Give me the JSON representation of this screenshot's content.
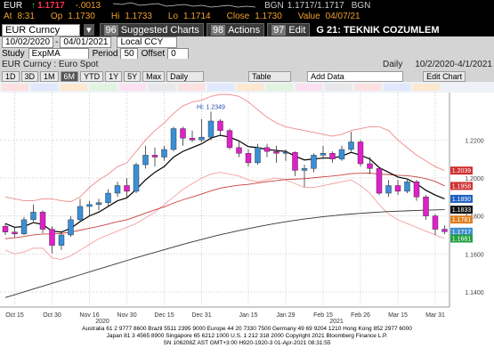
{
  "header": {
    "ticker": "EUR",
    "arrow": "↑",
    "last": "1.1717",
    "change": "-.0013",
    "bid_source": "BGN",
    "bid_ask": "1.1717/1.1717",
    "ask_source": "BGN",
    "at_label": "At",
    "time": "8:31",
    "open_label": "Op",
    "open": "1.1730",
    "high_label": "Hi",
    "high": "1.1733",
    "low_label": "Lo",
    "low": "1.1714",
    "close_label": "Close",
    "close": "1.1730",
    "value_label": "Value",
    "value_date": "04/07/21"
  },
  "toolbar": {
    "security": "EUR Curncy",
    "buttons": [
      {
        "code": "96",
        "label": "Suggested Charts"
      },
      {
        "code": "98",
        "label": "Actions"
      },
      {
        "code": "97",
        "label": "Edit"
      }
    ],
    "page": "G 21: TEKNIK COZUMLEM"
  },
  "range": {
    "start": "10/02/2020",
    "separator": "-",
    "end": "04/01/2021",
    "currency": "Local CCY"
  },
  "study": {
    "label": "Study",
    "name": "ExpMA",
    "period_label": "Period",
    "period": 50,
    "offset_label": "Offset",
    "offset": 0
  },
  "subtitle": {
    "security": "EUR Curncy : Euro Spot",
    "frequency": "Daily",
    "dates": "10/2/2020-4/1/2021"
  },
  "range_buttons": [
    {
      "label": "1D"
    },
    {
      "label": "3D"
    },
    {
      "label": "1M"
    },
    {
      "label": "6M",
      "selected": true
    },
    {
      "label": "YTD"
    },
    {
      "label": "1Y"
    },
    {
      "label": "5Y"
    },
    {
      "label": "Max"
    }
  ],
  "frequency_menu": "Daily",
  "actions": {
    "table": "Table",
    "add_data": "Add Data",
    "edit_chart": "Edit Chart"
  },
  "chart_data": {
    "type": "candlestick",
    "categories": [
      null,
      "Oct 15",
      null,
      null,
      null,
      "Oct 30",
      null,
      null,
      null,
      "Nov 16",
      null,
      null,
      null,
      "Nov 30",
      null,
      null,
      null,
      "Dec 15",
      null,
      null,
      null,
      "Dec 31",
      null,
      null,
      null,
      null,
      "Jan 15",
      null,
      null,
      null,
      "Jan 29",
      null,
      null,
      null,
      "Feb 15",
      null,
      null,
      null,
      "Feb 26",
      null,
      null,
      null,
      "Mar 15",
      null,
      null,
      null,
      "Mar 31",
      null
    ],
    "years": [
      "2020",
      "2021"
    ],
    "open": [
      1.1745,
      1.1715,
      1.1705,
      1.178,
      1.182,
      1.173,
      1.1645,
      1.17,
      1.178,
      1.185,
      1.186,
      1.187,
      1.192,
      1.196,
      1.193,
      1.207,
      1.212,
      1.211,
      1.215,
      1.226,
      1.221,
      1.22,
      1.2215,
      1.23,
      1.225,
      1.216,
      1.213,
      1.208,
      1.216,
      1.214,
      1.213,
      1.2135,
      1.204,
      1.205,
      1.212,
      1.213,
      1.21,
      1.215,
      1.219,
      1.2075,
      1.205,
      1.192,
      1.196,
      1.193,
      1.198,
      1.19,
      1.18,
      1.173
    ],
    "high": [
      1.176,
      1.174,
      1.1795,
      1.186,
      1.183,
      1.1745,
      1.172,
      1.18,
      1.189,
      1.188,
      1.189,
      1.194,
      1.198,
      1.2,
      1.208,
      1.217,
      1.216,
      1.217,
      1.227,
      1.227,
      1.225,
      1.231,
      1.2349,
      1.231,
      1.226,
      1.219,
      1.215,
      1.218,
      1.218,
      1.217,
      1.215,
      1.214,
      1.207,
      1.213,
      1.217,
      1.214,
      1.217,
      1.2243,
      1.22,
      1.211,
      1.206,
      1.199,
      1.199,
      1.199,
      1.199,
      1.191,
      1.181,
      1.175
    ],
    "low": [
      1.17,
      1.1688,
      1.17,
      1.177,
      1.171,
      1.1603,
      1.162,
      1.169,
      1.177,
      1.18,
      1.183,
      1.185,
      1.19,
      1.19,
      1.192,
      1.205,
      1.206,
      1.209,
      1.214,
      1.217,
      1.219,
      1.219,
      1.22,
      1.222,
      1.215,
      1.211,
      1.206,
      1.207,
      1.211,
      1.208,
      1.209,
      1.201,
      1.1953,
      1.203,
      1.21,
      1.208,
      1.209,
      1.214,
      1.206,
      1.202,
      1.191,
      1.19,
      1.191,
      1.192,
      1.188,
      1.178,
      1.17,
      1.1704
    ],
    "close": [
      1.1715,
      1.1705,
      1.178,
      1.182,
      1.173,
      1.1645,
      1.17,
      1.178,
      1.185,
      1.186,
      1.187,
      1.192,
      1.196,
      1.193,
      1.207,
      1.212,
      1.211,
      1.215,
      1.226,
      1.221,
      1.22,
      1.2215,
      1.23,
      1.225,
      1.216,
      1.213,
      1.208,
      1.216,
      1.214,
      1.213,
      1.2135,
      1.204,
      1.205,
      1.212,
      1.213,
      1.21,
      1.215,
      1.219,
      1.2075,
      1.205,
      1.192,
      1.196,
      1.193,
      1.198,
      1.19,
      1.18,
      1.173,
      1.1717
    ],
    "up_color": "#3a8fd6",
    "down_color": "#e020c8",
    "lines": [
      {
        "color": "#f08a8a",
        "values": [
          1.19,
          1.189,
          1.188,
          1.188,
          1.189,
          1.189,
          1.188,
          1.1875,
          1.19,
          1.195,
          1.199,
          1.202,
          1.206,
          1.208,
          1.214,
          1.22,
          1.225,
          1.229,
          1.234,
          1.238,
          1.24,
          1.241,
          1.243,
          1.244,
          1.244,
          1.243,
          1.24,
          1.236,
          1.232,
          1.229,
          1.227,
          1.226,
          1.225,
          1.224,
          1.223,
          1.222,
          1.223,
          1.225,
          1.226,
          1.227,
          1.227,
          1.225,
          1.22,
          1.216,
          1.212,
          1.209,
          1.206,
          1.2039
        ]
      },
      {
        "color": "#f5a0a0",
        "values": [
          1.162,
          1.16,
          1.161,
          1.163,
          1.163,
          1.158,
          1.157,
          1.159,
          1.162,
          1.165,
          1.168,
          1.17,
          1.172,
          1.174,
          1.176,
          1.179,
          1.182,
          1.186,
          1.19,
          1.194,
          1.197,
          1.2,
          1.202,
          1.203,
          1.202,
          1.201,
          1.199,
          1.198,
          1.199,
          1.2,
          1.199,
          1.197,
          1.195,
          1.195,
          1.196,
          1.197,
          1.198,
          1.199,
          1.196,
          1.192,
          1.186,
          1.181,
          1.178,
          1.176,
          1.174,
          1.172,
          1.17,
          1.1681
        ]
      },
      {
        "color": "#c84040",
        "values": [
          1.168,
          1.1685,
          1.1692,
          1.17,
          1.1705,
          1.1705,
          1.1708,
          1.1715,
          1.1725,
          1.1735,
          1.1745,
          1.1757,
          1.177,
          1.178,
          1.1797,
          1.1815,
          1.1832,
          1.1848,
          1.1868,
          1.1885,
          1.19,
          1.1915,
          1.1932,
          1.1946,
          1.1955,
          1.1962,
          1.1966,
          1.1974,
          1.198,
          1.1986,
          1.1992,
          1.1994,
          1.1996,
          1.2001,
          1.2006,
          1.201,
          1.2016,
          1.2023,
          1.2025,
          1.2026,
          1.202,
          1.2018,
          1.2014,
          1.2012,
          1.2006,
          1.1996,
          1.1982,
          1.1958
        ]
      },
      {
        "color": "#333333",
        "values": [
          1.137,
          1.1385,
          1.14,
          1.1415,
          1.143,
          1.1445,
          1.146,
          1.1475,
          1.149,
          1.1505,
          1.152,
          1.1535,
          1.155,
          1.1565,
          1.158,
          1.1594,
          1.1608,
          1.1622,
          1.1636,
          1.165,
          1.1663,
          1.1676,
          1.1689,
          1.1701,
          1.1712,
          1.1723,
          1.1733,
          1.1743,
          1.1752,
          1.1761,
          1.1769,
          1.1777,
          1.1784,
          1.179,
          1.1796,
          1.1801,
          1.1806,
          1.181,
          1.1814,
          1.1817,
          1.182,
          1.1823,
          1.1825,
          1.1827,
          1.1829,
          1.183,
          1.1832,
          1.1833
        ]
      },
      {
        "color": "#000000",
        "values": [
          1.176,
          1.174,
          1.1745,
          1.1765,
          1.1755,
          1.172,
          1.1715,
          1.1735,
          1.177,
          1.18,
          1.182,
          1.185,
          1.188,
          1.1895,
          1.194,
          1.199,
          1.203,
          1.206,
          1.211,
          1.214,
          1.216,
          1.218,
          1.221,
          1.2225,
          1.2215,
          1.2195,
          1.2165,
          1.216,
          1.215,
          1.2145,
          1.214,
          1.2115,
          1.2095,
          1.21,
          1.2105,
          1.2105,
          1.2115,
          1.2135,
          1.212,
          1.21,
          1.2055,
          1.203,
          1.2005,
          1.1995,
          1.197,
          1.1935,
          1.191,
          1.189
        ]
      }
    ],
    "high_annotation": "Hi: 1.2349",
    "price_labels": [
      {
        "value": 1.2039,
        "label": "1.2039",
        "color": "#d03030"
      },
      {
        "value": 1.1958,
        "label": "1.1958",
        "color": "#d03030"
      },
      {
        "value": 1.189,
        "label": "1.1890",
        "color": "#2060c0"
      },
      {
        "value": 1.1833,
        "label": "1.1833",
        "color": "#111111"
      },
      {
        "value": 1.1781,
        "label": "1.1781",
        "color": "#e08020"
      },
      {
        "value": 1.1717,
        "label": "1.1717",
        "color": "#4090d0"
      },
      {
        "value": 1.1681,
        "label": "1.1681",
        "color": "#20a040"
      }
    ],
    "ylim": [
      1.132,
      1.245
    ],
    "yticks": [
      {
        "value": 1.14,
        "label": "1.1400"
      },
      {
        "value": 1.16,
        "label": "1.1600"
      },
      {
        "value": 1.18,
        "label": "1.1800"
      },
      {
        "value": 1.2,
        "label": "1.2000"
      },
      {
        "value": 1.22,
        "label": "1.2200"
      }
    ],
    "grid": true
  },
  "footer": [
    "Australia 61 2 9777 8600 Brazil 5511 2395 9000 Europe 44 20 7330 7500 Germany 49 69 9204 1210 Hong Kong 852 2977 6000",
    "Japan 81 3 4565 8900       Singapore 65 6212 1000       U.S. 1 212 318 2000        Copyright 2021 Bloomberg Finance L.P.",
    "SN 106208Z AST  GMT+3:00 H920-1920-3 01-Apr-2021 08:31:55"
  ]
}
